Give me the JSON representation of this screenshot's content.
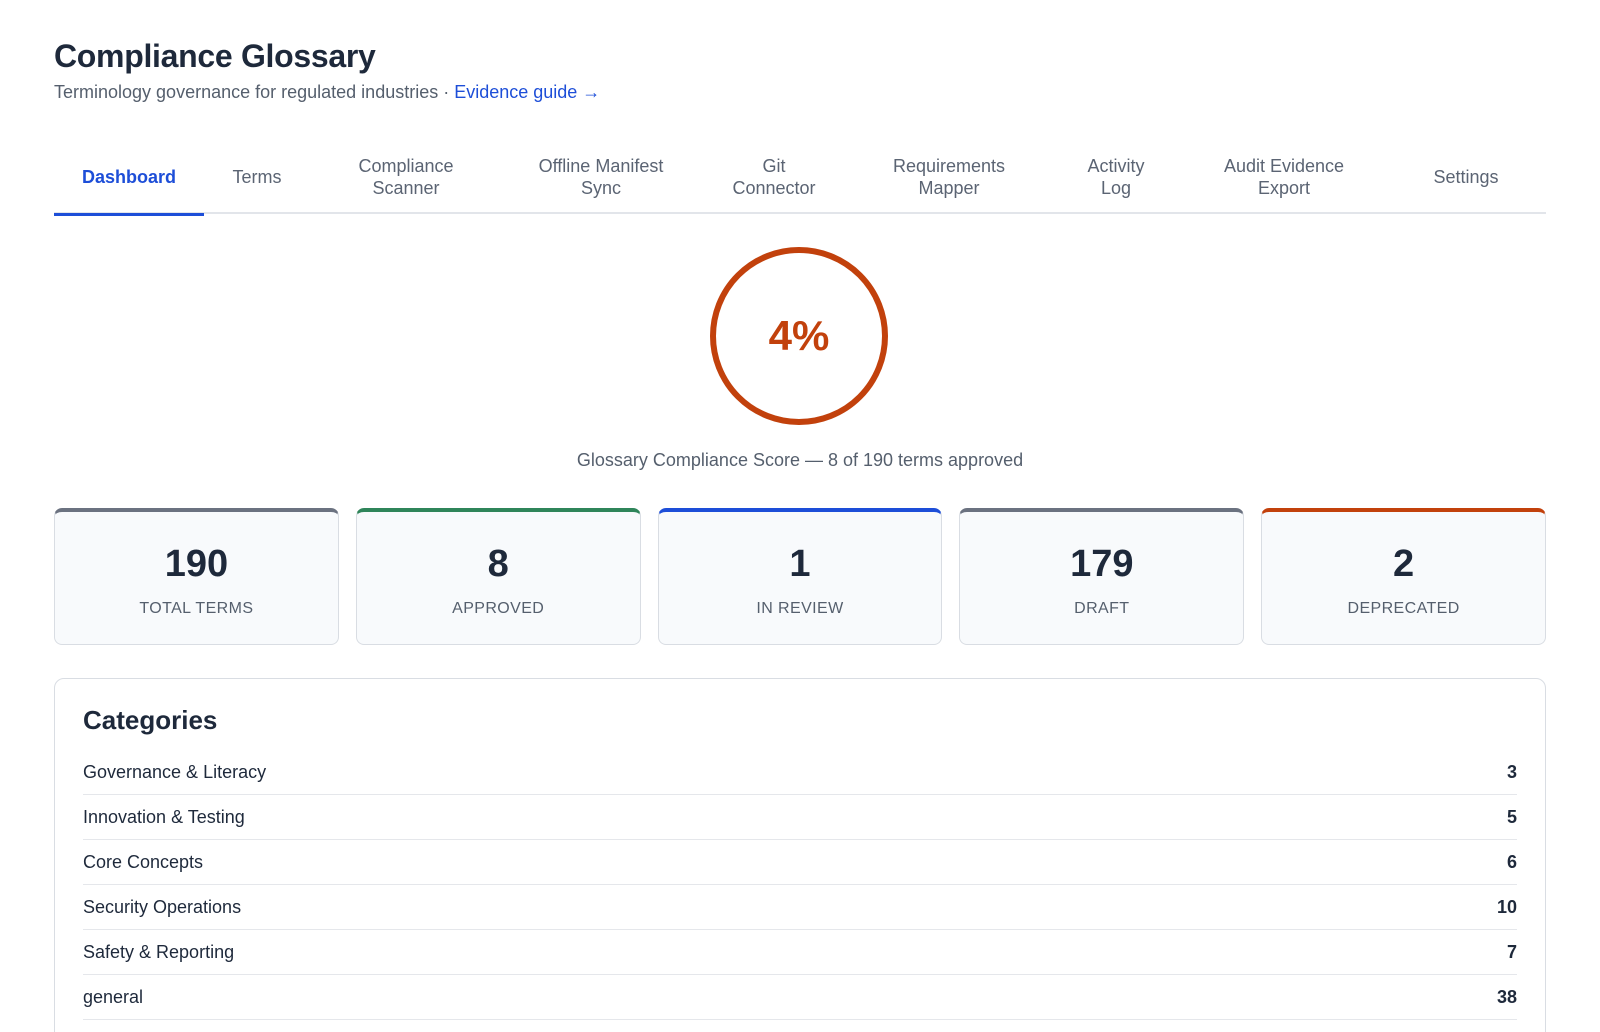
{
  "header": {
    "title": "Compliance Glossary",
    "subtitle": "Terminology governance for regulated industries · ",
    "link_label": "Evidence guide →"
  },
  "tabs": [
    {
      "label": "Dashboard",
      "active": true
    },
    {
      "label": "Terms"
    },
    {
      "label": "Compliance Scanner"
    },
    {
      "label": "Offline Manifest Sync"
    },
    {
      "label": "Git Connector"
    },
    {
      "label": "Requirements Mapper"
    },
    {
      "label": "Activity Log"
    },
    {
      "label": "Audit Evidence Export"
    },
    {
      "label": "Settings"
    }
  ],
  "score": {
    "value_label": "4%",
    "value": 0.04,
    "caption": "Glossary Compliance Score — 8 of 190 terms approved",
    "color": "#c2410c"
  },
  "stats": [
    {
      "value": "190",
      "label": "TOTAL TERMS",
      "accent": "#6b7280"
    },
    {
      "value": "8",
      "label": "APPROVED",
      "accent": "#2f855a"
    },
    {
      "value": "1",
      "label": "IN REVIEW",
      "accent": "#1d4ed8"
    },
    {
      "value": "179",
      "label": "DRAFT",
      "accent": "#6b7280"
    },
    {
      "value": "2",
      "label": "DEPRECATED",
      "accent": "#c2410c"
    }
  ],
  "categories": {
    "title": "Categories",
    "items": [
      {
        "name": "Governance & Literacy",
        "count": "3"
      },
      {
        "name": "Innovation & Testing",
        "count": "5"
      },
      {
        "name": "Core Concepts",
        "count": "6"
      },
      {
        "name": "Security Operations",
        "count": "10"
      },
      {
        "name": "Safety & Reporting",
        "count": "7"
      },
      {
        "name": "general",
        "count": "38"
      }
    ]
  }
}
